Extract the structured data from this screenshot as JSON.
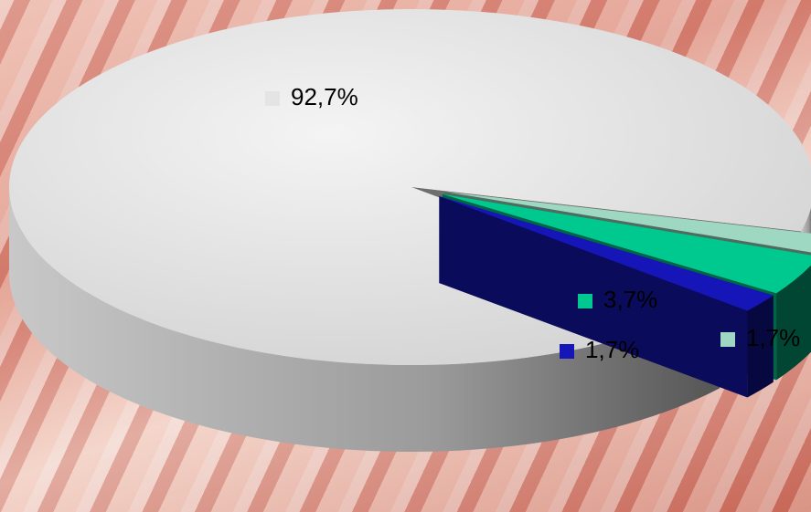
{
  "chart_data": {
    "type": "pie",
    "values": [
      92.7,
      1.7,
      3.7,
      1.7
    ],
    "value_labels": [
      "92,7%",
      "1,7%",
      "3,7%",
      "1,7%"
    ],
    "colors": [
      "#e4e4e4",
      "#9fd8c2",
      "#00c98f",
      "#1616b8"
    ],
    "exploded": [
      false,
      true,
      true,
      true
    ],
    "three_d": true
  }
}
